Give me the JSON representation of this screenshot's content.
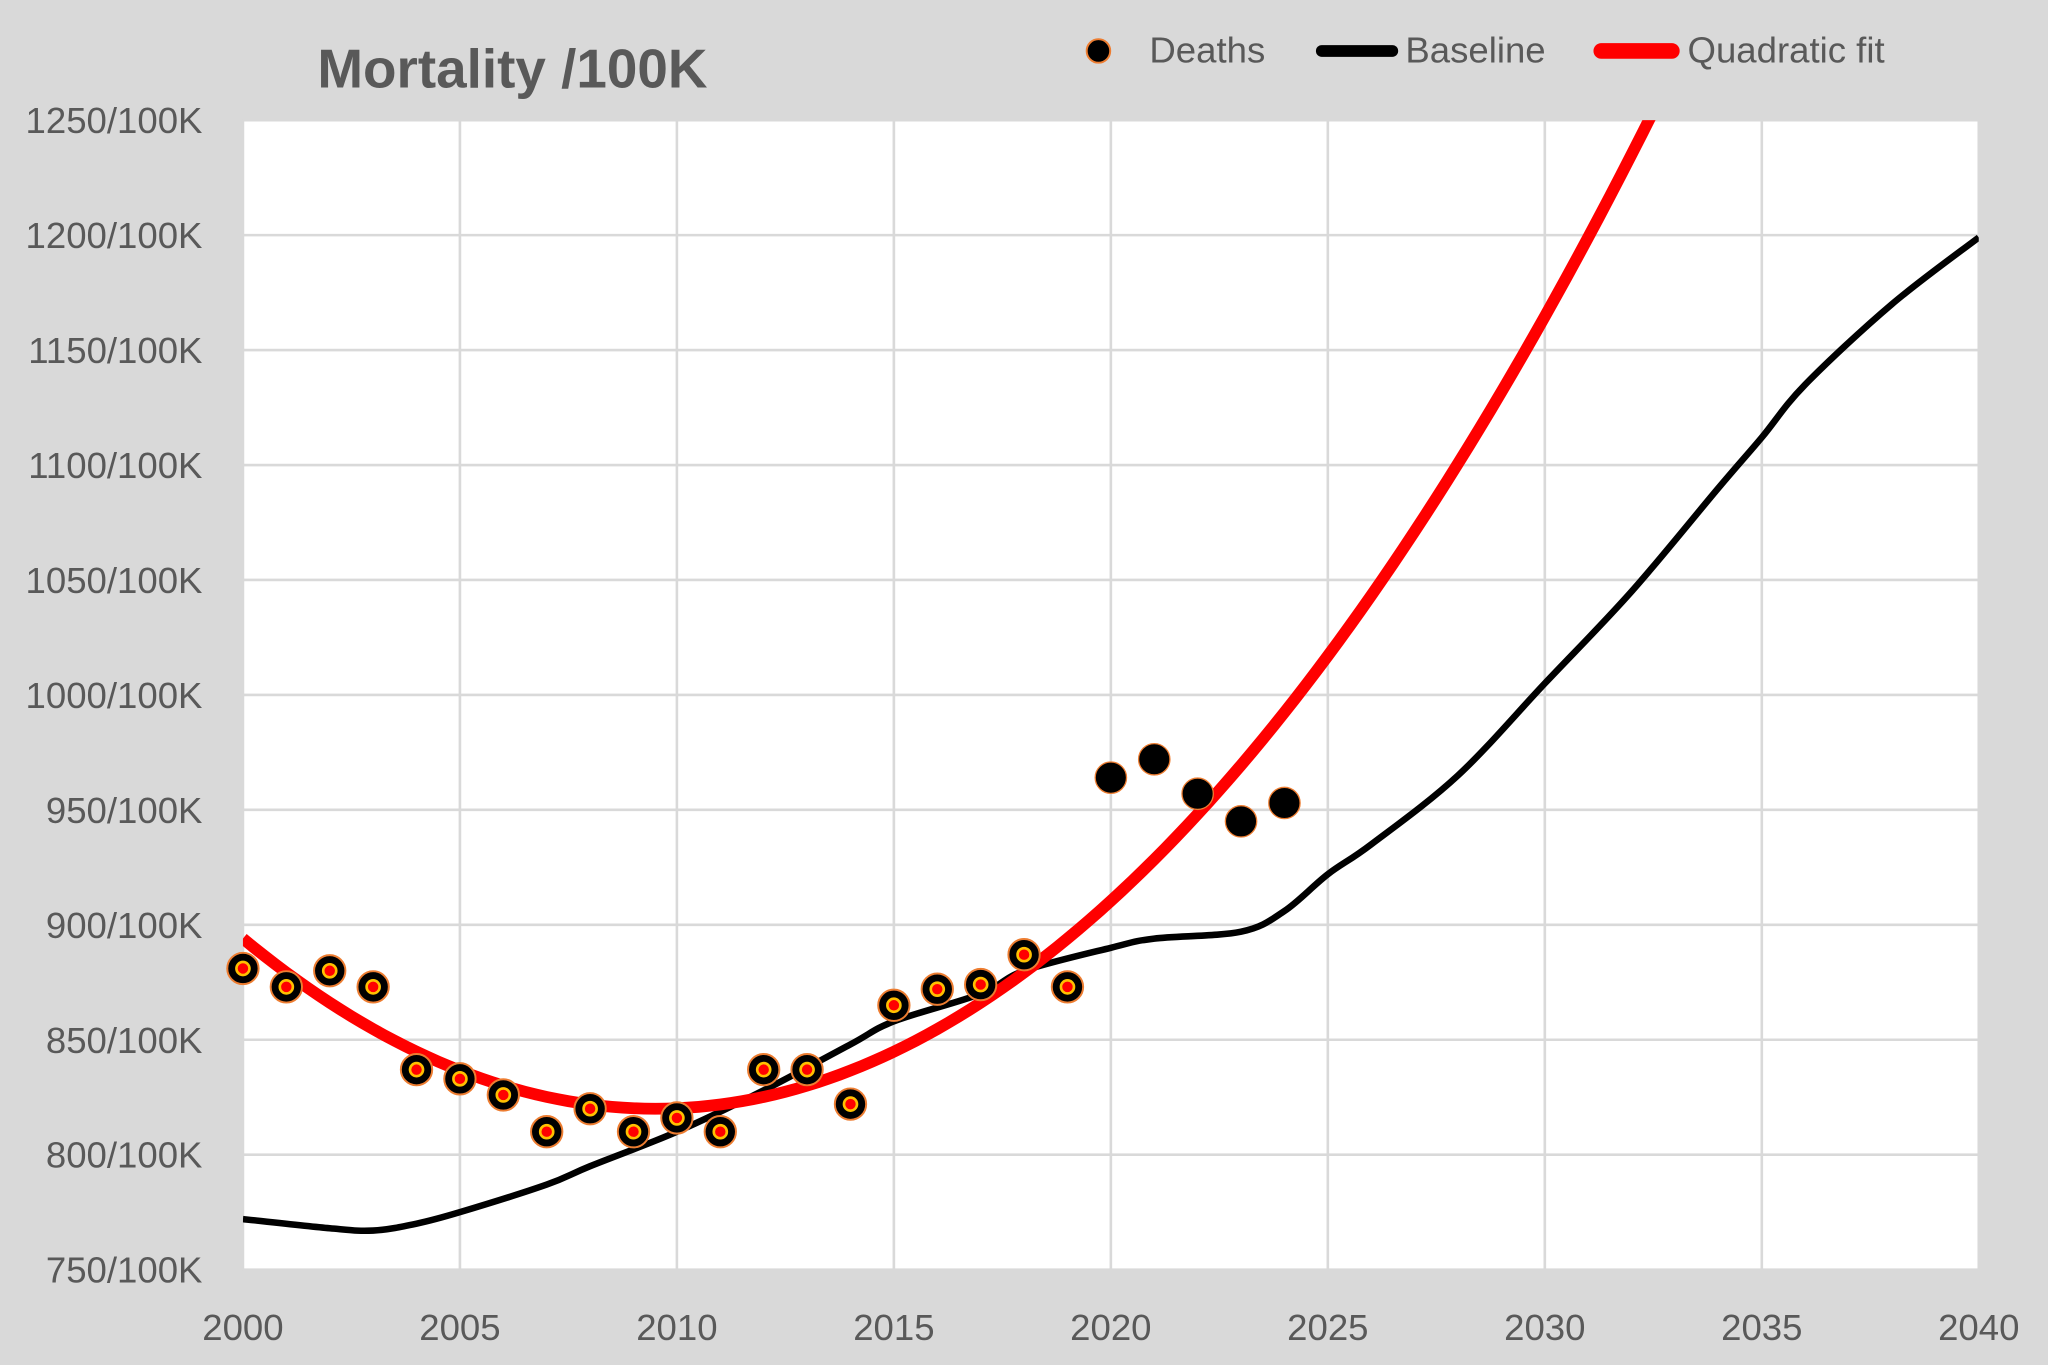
{
  "chart_data": {
    "type": "line",
    "title": "Mortality /100K",
    "xlabel": "",
    "ylabel": "",
    "xlim": [
      2000,
      2040
    ],
    "ylim": [
      750,
      1250
    ],
    "grid": true,
    "legend_placement": "top-right",
    "x_ticks": [
      "2000",
      "2005",
      "2010",
      "2015",
      "2020",
      "2025",
      "2030",
      "2035",
      "2040"
    ],
    "y_ticks": [
      "750/100K",
      "800/100K",
      "850/100K",
      "900/100K",
      "950/100K",
      "1000/100K",
      "1050/100K",
      "1100/100K",
      "1150/100K",
      "1200/100K",
      "1250/100K"
    ],
    "y_tick_values": [
      750,
      800,
      850,
      900,
      950,
      1000,
      1050,
      1100,
      1150,
      1200,
      1250
    ],
    "x_tick_values": [
      2000,
      2005,
      2010,
      2015,
      2020,
      2025,
      2030,
      2035,
      2040
    ],
    "legend": [
      "Deaths",
      "Baseline",
      "Quadratic fit"
    ],
    "series": [
      {
        "name": "Deaths",
        "kind": "scatter",
        "color": "#000000",
        "x": [
          2000,
          2001,
          2002,
          2003,
          2004,
          2005,
          2006,
          2007,
          2008,
          2009,
          2010,
          2011,
          2012,
          2013,
          2014,
          2015,
          2016,
          2017,
          2018,
          2019,
          2020,
          2021,
          2022,
          2023,
          2024
        ],
        "y": [
          881,
          873,
          880,
          873,
          837,
          833,
          826,
          810,
          820,
          810,
          816,
          810,
          837,
          837,
          822,
          865,
          872,
          874,
          887,
          873,
          964,
          972,
          957,
          945,
          953
        ]
      },
      {
        "name": "Baseline",
        "kind": "line",
        "color": "#000000",
        "x": [
          2000,
          2002,
          2003,
          2004,
          2005,
          2007,
          2008,
          2010,
          2012,
          2014,
          2015,
          2017,
          2018,
          2020,
          2021,
          2023,
          2024,
          2025,
          2026,
          2028,
          2030,
          2032,
          2034,
          2035,
          2036,
          2038,
          2040
        ],
        "y": [
          772,
          768,
          767,
          770,
          775,
          787,
          795,
          810,
          828,
          848,
          858,
          870,
          880,
          890,
          894,
          897,
          906,
          922,
          935,
          965,
          1005,
          1045,
          1090,
          1112,
          1135,
          1170,
          1199
        ]
      },
      {
        "name": "Quadratic fit",
        "kind": "line",
        "color": "#ff0000",
        "vertex_x": 2009.5,
        "vertex_y": 820,
        "a": 0.82
      }
    ]
  },
  "colors": {
    "background": "#d9d9d9",
    "plot": "#ffffff",
    "grid": "#d9d9d9",
    "text": "#595959",
    "marker_edge": "#ed7d31",
    "marker_ring": "#ffc000"
  }
}
